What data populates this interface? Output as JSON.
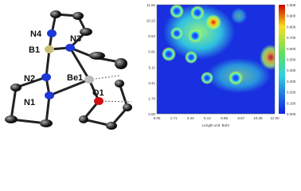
{
  "molecule": {
    "atom_labels": [
      "N4",
      "B1",
      "N3",
      "N2",
      "Be1",
      "O1",
      "N1"
    ]
  },
  "map": {
    "xticks": [
      "0.00",
      "1.71",
      "3.43",
      "5.14",
      "6.86",
      "8.57",
      "10.28",
      "12.00"
    ],
    "yticks": [
      "11.92",
      "10.22",
      "8.52",
      "6.81",
      "5.11",
      "3.41",
      "1.70",
      "0.00"
    ],
    "xlabel": "Length unit: Bohr",
    "colorbar_ticks": [
      "1.000",
      "0.900",
      "0.800",
      "0.700",
      "0.600",
      "0.500",
      "0.400",
      "0.300",
      "0.200",
      "0.100",
      "0.000"
    ]
  }
}
